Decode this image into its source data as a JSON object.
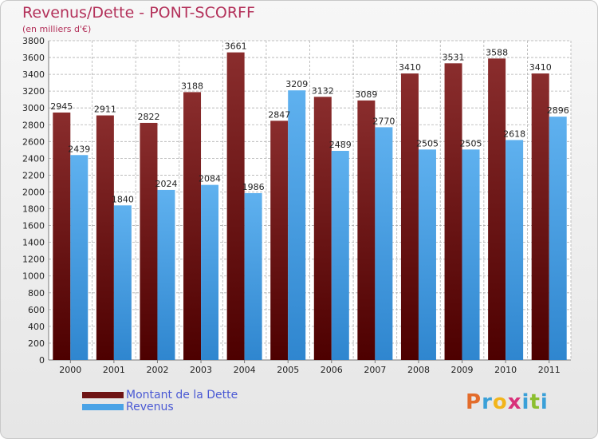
{
  "chart_data": {
    "type": "bar",
    "title": "Revenus/Dette - PONT-SCORFF",
    "subtitle": "(en milliers d'€)",
    "categories": [
      "2000",
      "2001",
      "2002",
      "2003",
      "2004",
      "2005",
      "2006",
      "2007",
      "2008",
      "2009",
      "2010",
      "2011"
    ],
    "series": [
      {
        "name": "Montant de la Dette",
        "color": "#7a1c1c",
        "values": [
          2945,
          2911,
          2822,
          3188,
          3661,
          2847,
          3132,
          3089,
          3410,
          3531,
          3588,
          3410
        ]
      },
      {
        "name": "Revenus",
        "color": "#4aa3e6",
        "values": [
          2439,
          1840,
          2024,
          2084,
          1986,
          3209,
          2489,
          2770,
          2505,
          2505,
          2618,
          2896
        ]
      }
    ],
    "ylim": [
      0,
      3800
    ],
    "yticks": [
      0,
      200,
      400,
      600,
      800,
      1000,
      1200,
      1400,
      1600,
      1800,
      2000,
      2200,
      2400,
      2600,
      2800,
      3000,
      3200,
      3400,
      3600,
      3800
    ],
    "grid": true,
    "legend_position": "bottom-left"
  },
  "logo": {
    "letters": [
      "P",
      "r",
      "o",
      "x",
      "i",
      "t",
      "i"
    ],
    "colors": [
      "#e36c2b",
      "#3aa0d8",
      "#f2b51b",
      "#d8317a",
      "#3aa0d8",
      "#8cbf2f",
      "#3aa0d8"
    ]
  }
}
